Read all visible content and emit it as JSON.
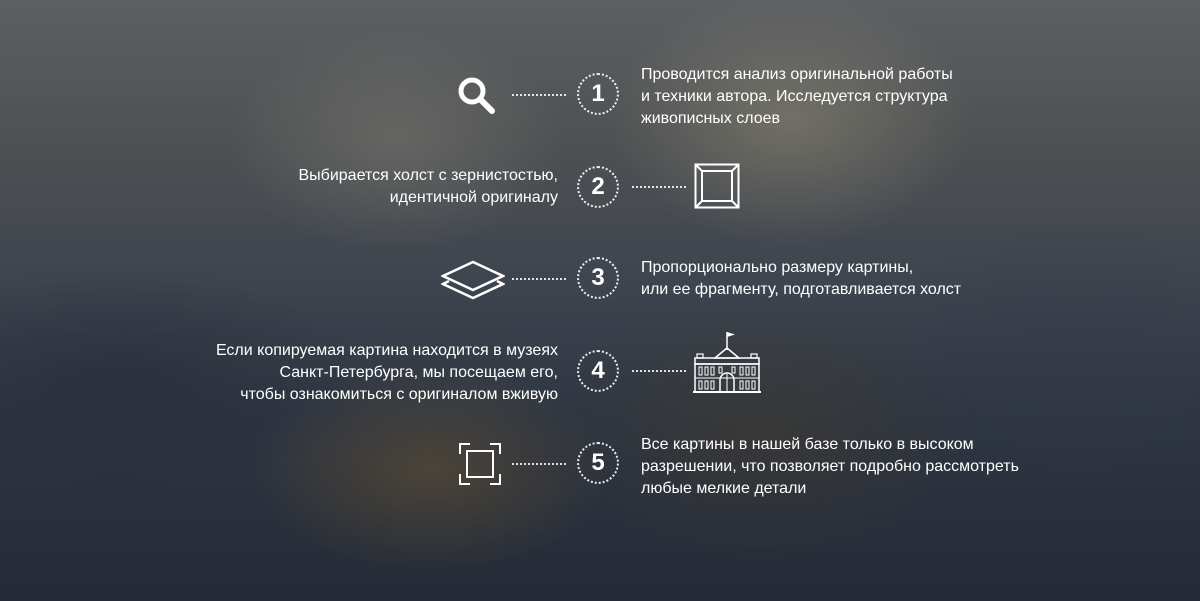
{
  "steps": [
    {
      "number": "1",
      "icon": "search-icon",
      "text": "Проводится анализ оригинальной работы\nи техники автора. Исследуется структура\nживописных слоев"
    },
    {
      "number": "2",
      "icon": "canvas-frame-icon",
      "text": "Выбирается холст с зернистостью,\nидентичной оригиналу"
    },
    {
      "number": "3",
      "icon": "layers-icon",
      "text": "Пропорционально размеру картины,\nили ее фрагменту, подготавливается холст"
    },
    {
      "number": "4",
      "icon": "museum-building-icon",
      "text": "Если копируемая картина находится в музеях\nСанкт-Петербурга, мы посещаем его,\nчтобы ознакомиться с оригиналом вживую"
    },
    {
      "number": "5",
      "icon": "focus-frame-icon",
      "text": "Все картины в нашей базе только в высоком\nразрешении, что позволяет подробно рассмотреть\nлюбые мелкие детали"
    }
  ],
  "colors": {
    "text": "#ffffff",
    "overlay": "#1d232e"
  }
}
